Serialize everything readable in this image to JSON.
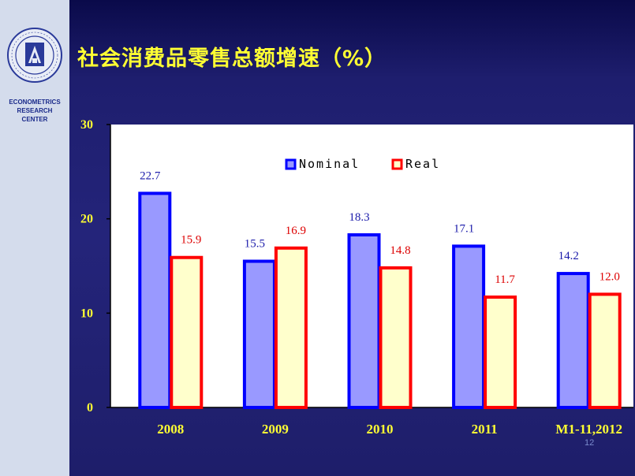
{
  "sidebar": {
    "center_label": [
      "ECONOMETRICS",
      "RESEARCH",
      "CENTER"
    ],
    "logo_icon": "institution-seal-icon"
  },
  "title": "社会消费品零售总额增速（%）",
  "page_number": "12",
  "colors": {
    "nominal_fill": "#9999ff",
    "nominal_stroke": "#0000ff",
    "real_fill": "#ffffcc",
    "real_stroke": "#ff0000",
    "title": "#ffff33",
    "axis_text": "#ffff33"
  },
  "chart_data": {
    "type": "bar",
    "categories": [
      "2008",
      "2009",
      "2010",
      "2011",
      "M1-11,2012"
    ],
    "series": [
      {
        "name": "Nominal",
        "values": [
          22.7,
          15.5,
          18.3,
          17.1,
          14.2
        ],
        "labels": [
          "22.7",
          "15.5",
          "18.3",
          "17.1",
          "14.2"
        ]
      },
      {
        "name": "Real",
        "values": [
          15.9,
          16.9,
          14.8,
          11.7,
          12.0
        ],
        "labels": [
          "15.9",
          "16.9",
          "14.8",
          "11.7",
          "12.0"
        ]
      }
    ],
    "ylim": [
      0,
      30
    ],
    "yticks": [
      "0",
      "10",
      "20",
      "30"
    ],
    "legend_position": "top-center",
    "grid": false
  }
}
